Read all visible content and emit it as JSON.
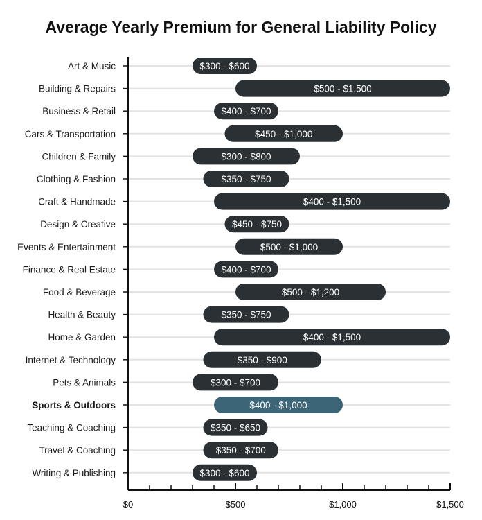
{
  "chart_data": {
    "type": "bar",
    "orientation": "horizontal-range",
    "title": "Average Yearly Premium for General Liability Policy",
    "xlim": [
      0,
      1500
    ],
    "x_ticks": [
      {
        "value": 0,
        "label": "$0"
      },
      {
        "value": 500,
        "label": "$500"
      },
      {
        "value": 1000,
        "label": "$1,000"
      },
      {
        "value": 1500,
        "label": "$1,500"
      }
    ],
    "minor_tick_step": 100,
    "grid": true,
    "colors": {
      "bar": "#2a3033",
      "highlight": "#3c6678",
      "grid": "#e3e3e3",
      "axis": "#111111"
    },
    "categories": [
      {
        "name": "Art & Music",
        "low": 300,
        "high": 600,
        "label": "$300 - $600"
      },
      {
        "name": "Building & Repairs",
        "low": 500,
        "high": 1500,
        "label": "$500 - $1,500"
      },
      {
        "name": "Business & Retail",
        "low": 400,
        "high": 700,
        "label": "$400 - $700"
      },
      {
        "name": "Cars & Transportation",
        "low": 450,
        "high": 1000,
        "label": "$450 - $1,000"
      },
      {
        "name": "Children & Family",
        "low": 300,
        "high": 800,
        "label": "$300 - $800"
      },
      {
        "name": "Clothing & Fashion",
        "low": 350,
        "high": 750,
        "label": "$350 - $750"
      },
      {
        "name": "Craft & Handmade",
        "low": 400,
        "high": 1500,
        "label": "$400 - $1,500"
      },
      {
        "name": "Design & Creative",
        "low": 450,
        "high": 750,
        "label": "$450 - $750"
      },
      {
        "name": "Events & Entertainment",
        "low": 500,
        "high": 1000,
        "label": "$500 - $1,000"
      },
      {
        "name": "Finance & Real Estate",
        "low": 400,
        "high": 700,
        "label": "$400 - $700"
      },
      {
        "name": "Food & Beverage",
        "low": 500,
        "high": 1200,
        "label": "$500 - $1,200"
      },
      {
        "name": "Health & Beauty",
        "low": 350,
        "high": 750,
        "label": "$350 - $750"
      },
      {
        "name": "Home & Garden",
        "low": 400,
        "high": 1500,
        "label": "$400 - $1,500"
      },
      {
        "name": "Internet & Technology",
        "low": 350,
        "high": 900,
        "label": "$350 - $900"
      },
      {
        "name": "Pets & Animals",
        "low": 300,
        "high": 700,
        "label": "$300 - $700"
      },
      {
        "name": "Sports & Outdoors",
        "low": 400,
        "high": 1000,
        "label": "$400 - $1,000",
        "highlight": true
      },
      {
        "name": "Teaching & Coaching",
        "low": 350,
        "high": 650,
        "label": "$350 - $650"
      },
      {
        "name": "Travel & Coaching",
        "low": 350,
        "high": 700,
        "label": "$350 - $700"
      },
      {
        "name": "Writing & Publishing",
        "low": 300,
        "high": 600,
        "label": "$300 - $600"
      }
    ]
  }
}
